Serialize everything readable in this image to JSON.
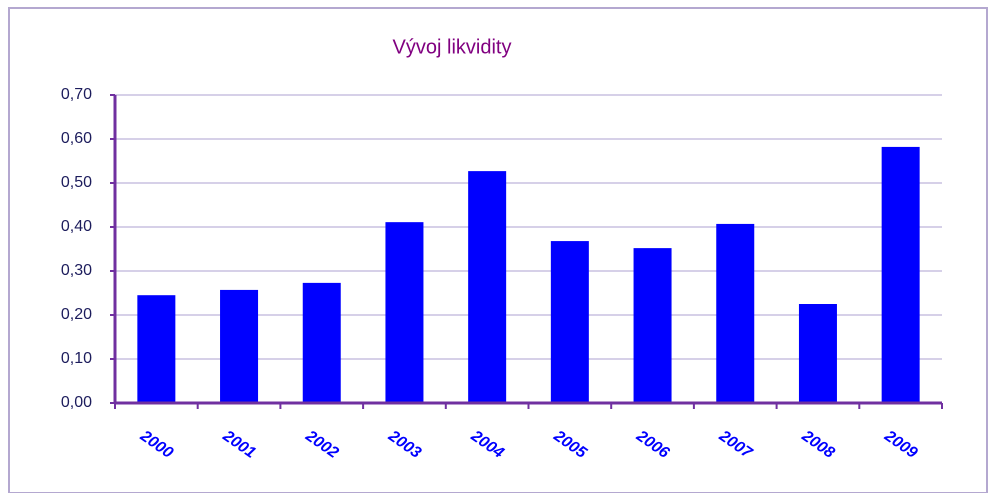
{
  "chart_data": {
    "type": "bar",
    "title": "Vývoj likvidity",
    "categories": [
      "2000",
      "2001",
      "2002",
      "2003",
      "2004",
      "2005",
      "2006",
      "2007",
      "2008",
      "2009"
    ],
    "values": [
      0.245,
      0.257,
      0.273,
      0.411,
      0.527,
      0.368,
      0.352,
      0.407,
      0.225,
      0.582
    ],
    "color": "#0000ff",
    "ylim": [
      0,
      0.7
    ],
    "yticks": [
      {
        "value": 0,
        "label": "0,00"
      },
      {
        "value": 0.1,
        "label": "0,10"
      },
      {
        "value": 0.2,
        "label": "0,20"
      },
      {
        "value": 0.3,
        "label": "0,30"
      },
      {
        "value": 0.4,
        "label": "0,40"
      },
      {
        "value": 0.5,
        "label": "0,50"
      },
      {
        "value": 0.6,
        "label": "0,60"
      },
      {
        "value": 0.7,
        "label": "0,70"
      }
    ],
    "grid": true
  }
}
